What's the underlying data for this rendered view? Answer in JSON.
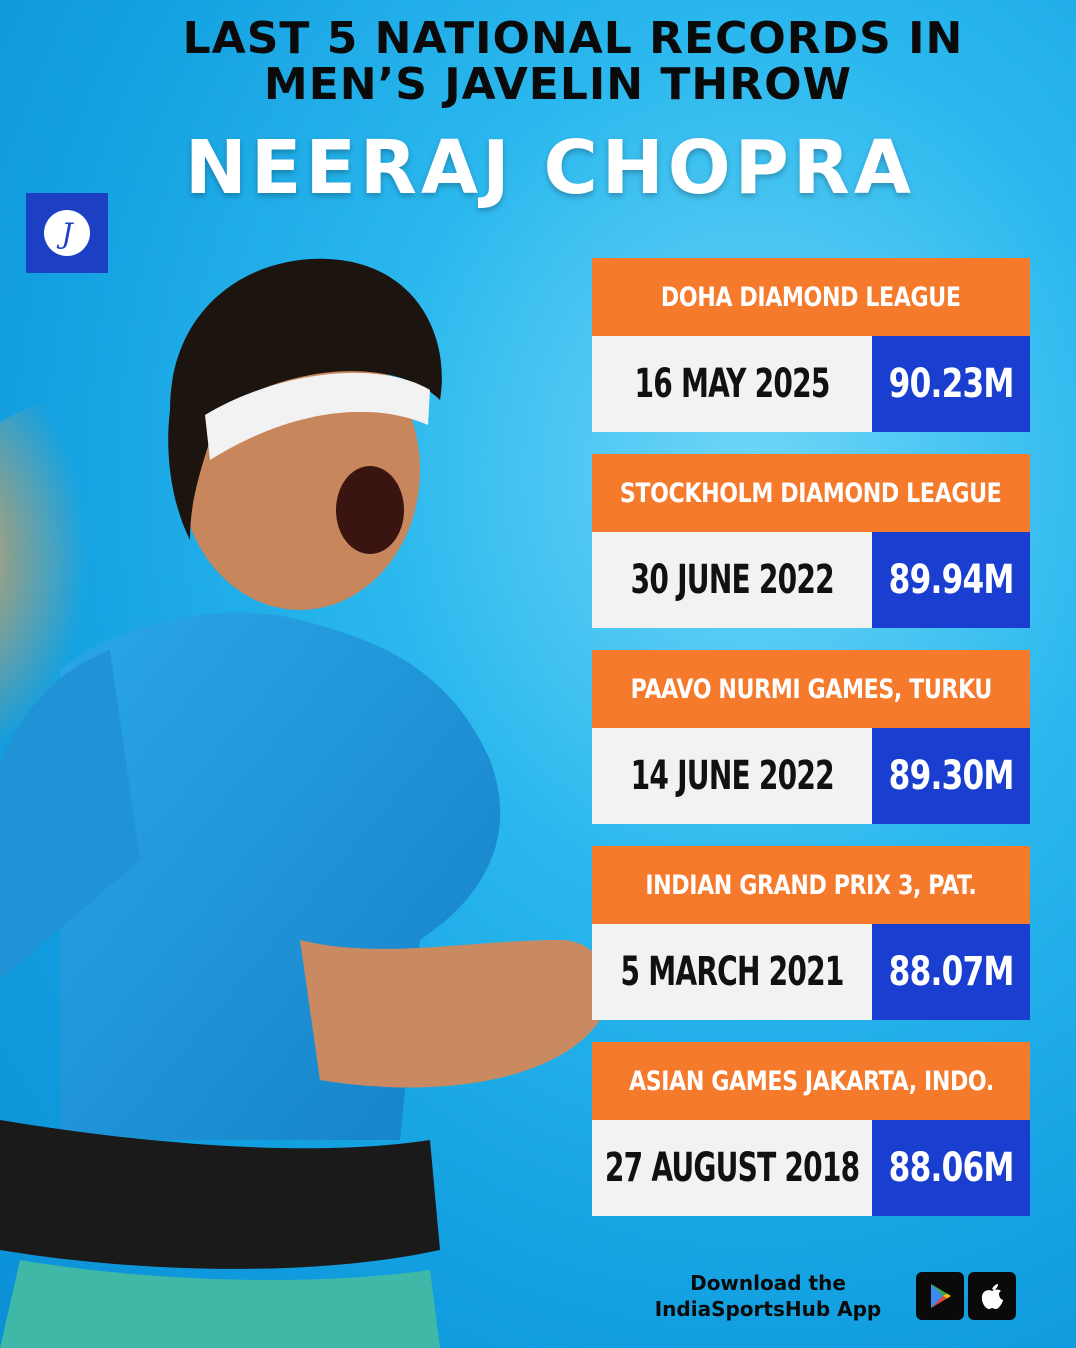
{
  "header": {
    "title_line1": "LAST 5 NATIONAL RECORDS IN",
    "title_line2": "MEN’S JAVELIN THROW",
    "athlete_name": "NEERAJ CHOPRA"
  },
  "logo": {
    "glyph": "J"
  },
  "records": [
    {
      "event": "DOHA DIAMOND LEAGUE",
      "date": "16 MAY 2025",
      "distance": "90.23M"
    },
    {
      "event": "STOCKHOLM DIAMOND LEAGUE",
      "date": "30 JUNE 2022",
      "distance": "89.94M"
    },
    {
      "event": "PAAVO NURMI GAMES, TURKU",
      "date": "14 JUNE 2022",
      "distance": "89.30M"
    },
    {
      "event": "INDIAN GRAND PRIX 3, PAT.",
      "date": "5 MARCH 2021",
      "distance": "88.07M"
    },
    {
      "event": "ASIAN GAMES JAKARTA, INDO.",
      "date": "27 AUGUST 2018",
      "distance": "88.06M"
    }
  ],
  "footer": {
    "download_line1": "Download the",
    "download_line2": "IndiaSportsHub App",
    "play_store_icon": "play-store-icon",
    "app_store_icon": "apple-icon"
  },
  "colors": {
    "background": "#129fe0",
    "event_bar": "#f57a2c",
    "date_bar": "#f2f2f2",
    "distance_bar": "#1a3fd0"
  }
}
